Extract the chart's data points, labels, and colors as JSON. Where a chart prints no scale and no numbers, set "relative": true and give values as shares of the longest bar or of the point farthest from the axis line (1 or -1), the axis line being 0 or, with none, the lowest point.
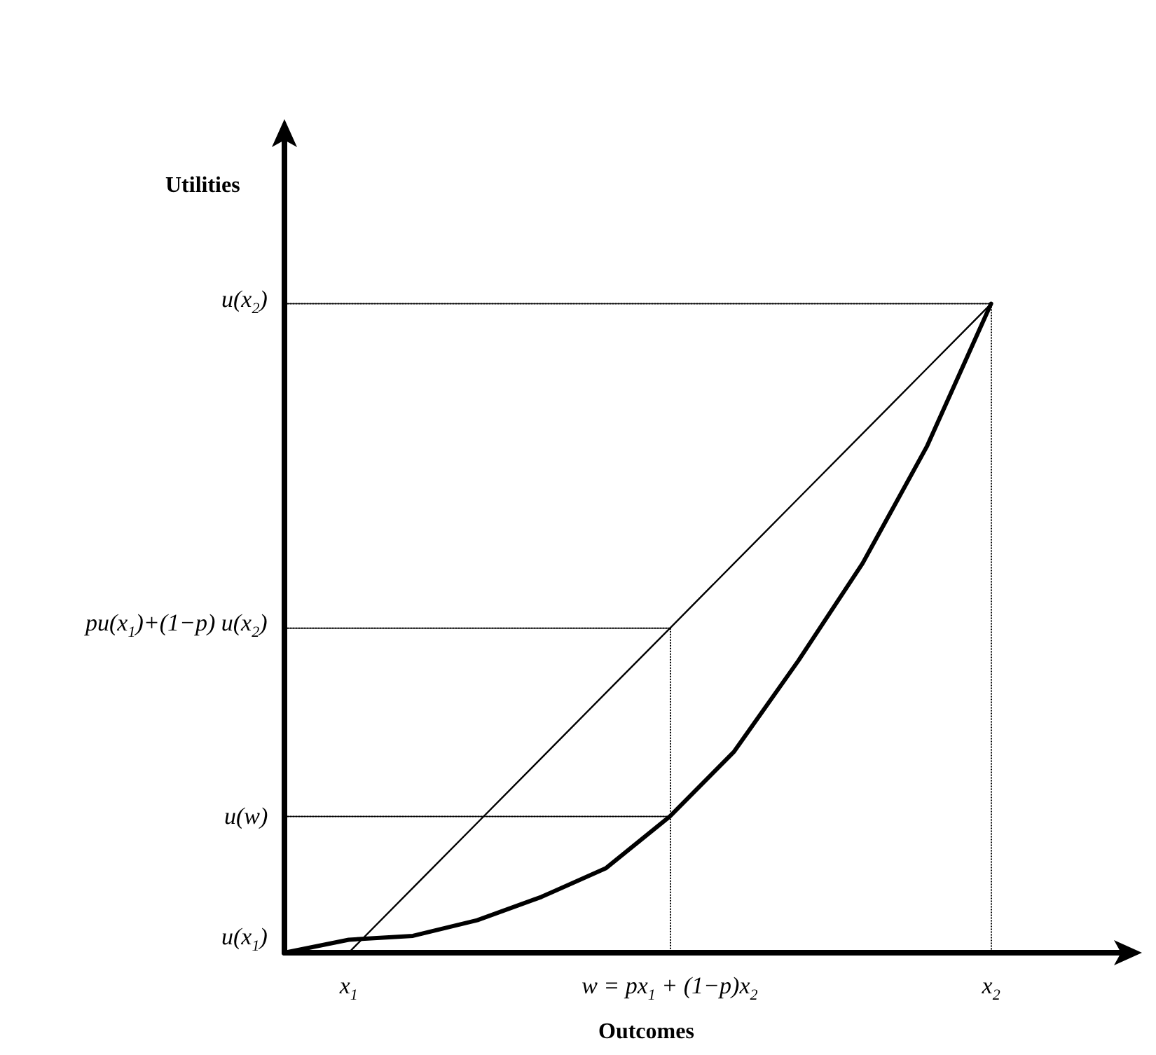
{
  "chart_data": {
    "type": "line",
    "relative": true,
    "xlabel": "Outcomes",
    "categories": [
      null,
      "x$_{1}$",
      null,
      null,
      null,
      null,
      "w = px$_{1}$ + (1−p)x$_{2}$",
      null,
      null,
      null,
      null,
      "x$_{2}$",
      null,
      null
    ],
    "annotations": [
      "u(x$_{1}$)",
      "Utilities"
    ],
    "grid": false,
    "marker": "none",
    "series": [
      {
        "color": "#000000",
        "line_style": "solid",
        "values": [
          0,
          0.02,
          0.026,
          0.05,
          0.086,
          0.13,
          0.21,
          0.31,
          0.45,
          0.6,
          0.78,
          1,
          null,
          null
        ]
      },
      {
        "color": "#000000",
        "line_style": "solid",
        "values": [
          null,
          0,
          0.1,
          0.2,
          0.3,
          0.4,
          0.5,
          0.6,
          0.7,
          0.8,
          0.9,
          1,
          null,
          null
        ]
      },
      {
        "name": "u(x$_{2}$)",
        "color": "#000000",
        "line_style": "dotted",
        "values": [
          1,
          1,
          1,
          1,
          1,
          1,
          1,
          1,
          1,
          1,
          1,
          1,
          null,
          null
        ]
      },
      {
        "name": "pu(x$_{1}$)+(1−p) u(x$_{2}$)",
        "color": "#000000",
        "line_style": "dotted",
        "values": [
          0.5,
          0.5,
          0.5,
          0.5,
          0.5,
          0.5,
          0.5,
          null,
          null,
          null,
          null,
          null,
          null,
          null
        ]
      },
      {
        "name": "u(w)",
        "color": "#000000",
        "line_style": "dotted",
        "values": [
          0.21,
          0.21,
          0.21,
          0.21,
          0.21,
          0.21,
          0.21,
          null,
          null,
          null,
          null,
          null,
          null,
          null
        ]
      }
    ]
  }
}
